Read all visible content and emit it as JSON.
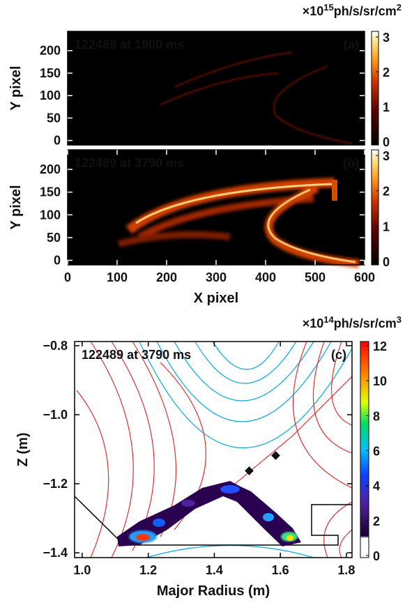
{
  "chart_data": [
    {
      "type": "image",
      "annotation": "122489 at 1900 ms",
      "panel_label": "(a)",
      "y_label": "Y pixel",
      "xlim": [
        0,
        600
      ],
      "ylim": [
        -10,
        243
      ],
      "yticks": [
        0,
        50,
        100,
        150,
        200
      ],
      "colormap": "hot",
      "clim": [
        -0.1,
        3.16
      ],
      "cticks": [
        0,
        1,
        2,
        3
      ],
      "colorbar_label": {
        "prefix": "×10",
        "exponent": "15",
        "unit": "ph/s/sr/cm",
        "unit_exponent": "2"
      }
    },
    {
      "type": "image",
      "annotation": "122489 at 3790 ms",
      "panel_label": "(b)",
      "y_label": "Y pixel",
      "x_label": "X pixel",
      "xlim": [
        0,
        600
      ],
      "ylim": [
        -10,
        243
      ],
      "xticks": [
        0,
        100,
        200,
        300,
        400,
        500,
        600
      ],
      "yticks": [
        0,
        50,
        100,
        150,
        200
      ],
      "colormap": "hot",
      "clim": [
        -0.1,
        3.16
      ],
      "cticks": [
        0,
        1,
        2,
        3
      ]
    },
    {
      "type": "image",
      "annotation": "122489 at 3790 ms",
      "panel_label": "(c)",
      "y_label": "Z (m)",
      "x_label": "Major Radius (m)",
      "xlim": [
        0.977,
        1.817
      ],
      "ylim": [
        -1.414,
        -0.788
      ],
      "xticks": [
        {
          "value": 1,
          "label": "1.0"
        },
        1.2,
        1.4,
        1.6,
        1.8
      ],
      "yticks": [
        {
          "value": -0.8,
          "label": "−0.8"
        },
        {
          "value": -1,
          "label": "−1.0"
        },
        {
          "value": -1.2,
          "label": "−1.2"
        },
        {
          "value": -1.4,
          "label": "−1.4"
        }
      ],
      "colormap": "jet",
      "clim": [
        -0.12,
        12.24
      ],
      "cticks": [
        0,
        2,
        4,
        6,
        8,
        10,
        12
      ],
      "colorbar_label": {
        "prefix": "×10",
        "exponent": "14",
        "unit": "ph/s/sr/cm",
        "unit_exponent": "3"
      }
    }
  ]
}
